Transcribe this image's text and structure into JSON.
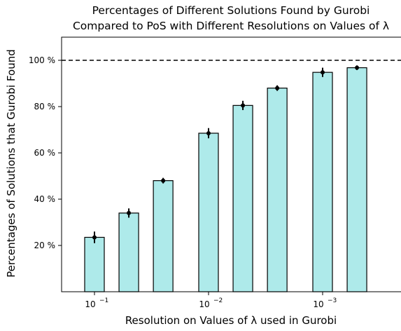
{
  "chart_data": {
    "type": "bar",
    "title": [
      "Percentages of Different Solutions Found by Gurobi",
      "Compared to PoS with Different Resolutions on Values of λ"
    ],
    "xlabel": "Resolution on Values of λ used in Gurobi",
    "ylabel": "Percentages of Solutions that Gurobi Found",
    "x_scale": "log-reversed",
    "x_ticks": [
      {
        "value": 0.1,
        "base": "10",
        "exp": "−1"
      },
      {
        "value": 0.01,
        "base": "10",
        "exp": "−2"
      },
      {
        "value": 0.001,
        "base": "10",
        "exp": "−3"
      }
    ],
    "y_ticks": [
      {
        "value": 20,
        "label": "20 %"
      },
      {
        "value": 40,
        "label": "40 %"
      },
      {
        "value": 60,
        "label": "60 %"
      },
      {
        "value": 80,
        "label": "80 %"
      },
      {
        "value": 100,
        "label": "100 %"
      }
    ],
    "ylim": [
      0,
      110
    ],
    "bars": [
      {
        "x": 0.1,
        "value": 23.5,
        "err": 2.5
      },
      {
        "x": 0.05,
        "value": 34,
        "err": 2
      },
      {
        "x": 0.025,
        "value": 48,
        "err": 1.2
      },
      {
        "x": 0.01,
        "value": 68.5,
        "err": 2.2
      },
      {
        "x": 0.005,
        "value": 80.5,
        "err": 2
      },
      {
        "x": 0.0025,
        "value": 88,
        "err": 1.2
      },
      {
        "x": 0.001,
        "value": 94.8,
        "err": 2
      },
      {
        "x": 0.0005,
        "value": 96.8,
        "err": 1
      }
    ],
    "reference_line": {
      "value": 100,
      "style": "dashed"
    },
    "bar_color": "#aeeaea",
    "edge_color": "#000000"
  }
}
